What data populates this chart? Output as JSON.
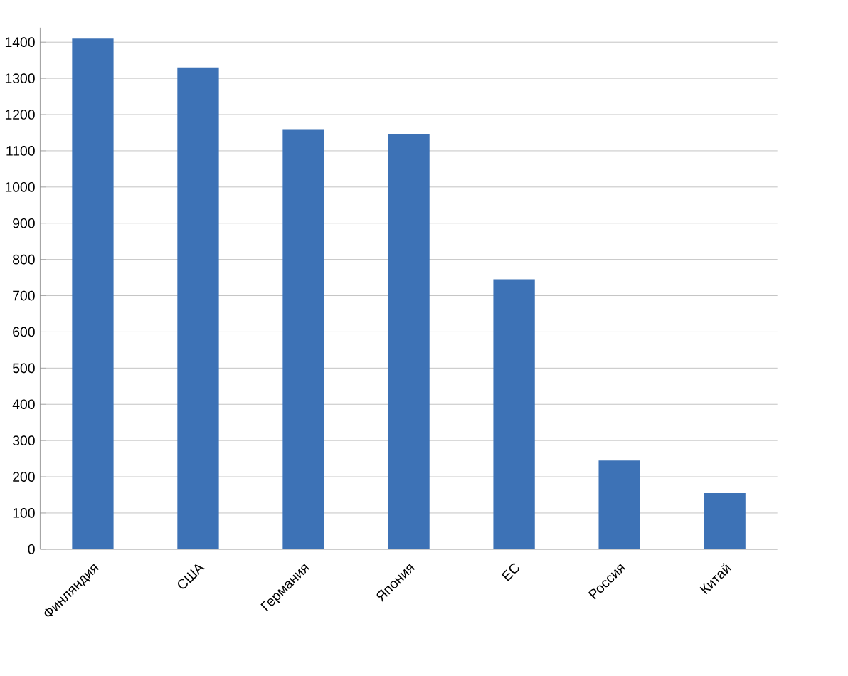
{
  "chart_data": {
    "type": "bar",
    "categories": [
      "Финляндия",
      "США",
      "Германия",
      "Япония",
      "ЕС",
      "Россия",
      "Китай"
    ],
    "values": [
      1410,
      1330,
      1160,
      1145,
      745,
      245,
      155
    ],
    "color": "#3d72b6",
    "ylim": [
      0,
      1440
    ],
    "yticks": [
      0,
      100,
      200,
      300,
      400,
      500,
      600,
      700,
      800,
      900,
      1000,
      1100,
      1200,
      1300,
      1400
    ],
    "grid": "y"
  }
}
